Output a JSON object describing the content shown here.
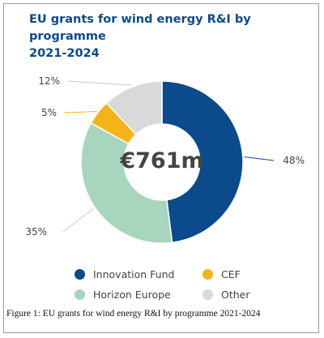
{
  "chart_data": {
    "type": "pie",
    "donut": true,
    "title": "EU grants for wind energy R&I by programme",
    "title_line2": "2021-2024",
    "center_label": "€761m",
    "slices": [
      {
        "name": "Innovation Fund",
        "value": 48,
        "label": "48%",
        "color": "#0b4a8b"
      },
      {
        "name": "Horizon Europe",
        "value": 35,
        "label": "35%",
        "color": "#a8d5bd"
      },
      {
        "name": "CEF",
        "value": 5,
        "label": "5%",
        "color": "#f5b317"
      },
      {
        "name": "Other",
        "value": 12,
        "label": "12%",
        "color": "#d9d9d9"
      }
    ],
    "legend": [
      {
        "name": "Innovation Fund",
        "color": "#0b4a8b"
      },
      {
        "name": "CEF",
        "color": "#f5b317"
      },
      {
        "name": "Horizon Europe",
        "color": "#a8d5bd"
      },
      {
        "name": "Other",
        "color": "#d9d9d9"
      }
    ],
    "legend_placement": "bottom"
  },
  "caption": "Figure 1: EU grants for wind energy R&I by programme 2021-2024"
}
